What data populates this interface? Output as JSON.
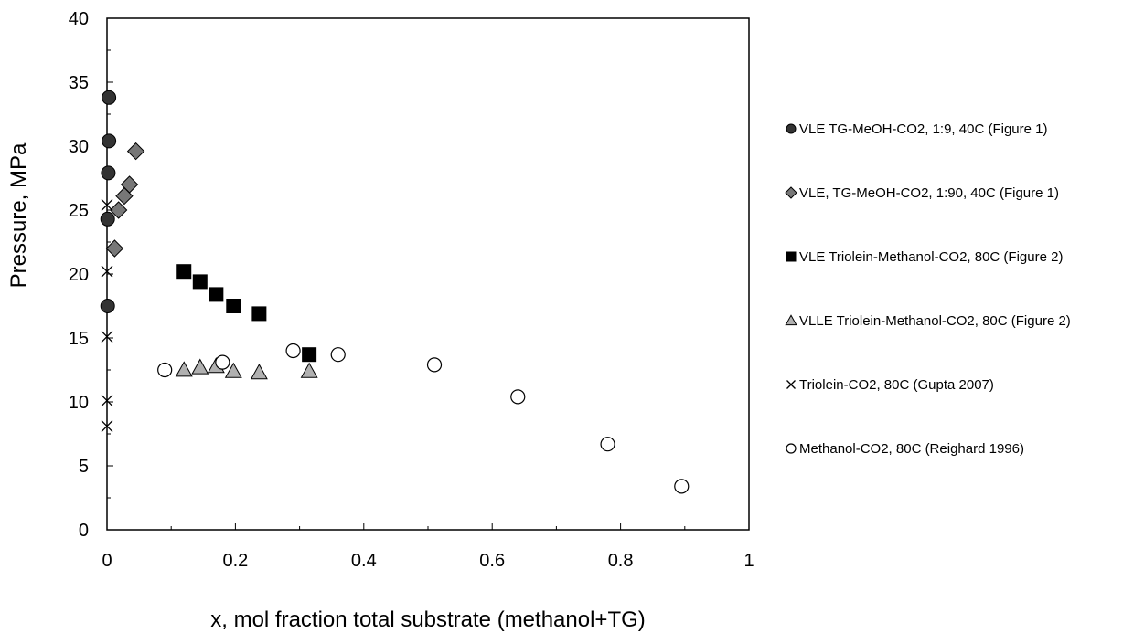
{
  "chart_data": {
    "type": "scatter",
    "title": "",
    "xlabel": "x, mol fraction total substrate (methanol+TG)",
    "ylabel": "Pressure, MPa",
    "xlim": [
      0,
      1
    ],
    "ylim": [
      0,
      40
    ],
    "x_ticks": [
      0,
      0.2,
      0.4,
      0.6,
      0.8,
      1
    ],
    "x_tick_labels": [
      "0",
      "0.2",
      "0.4",
      "0.6",
      "0.8",
      "1"
    ],
    "y_ticks": [
      0,
      5,
      10,
      15,
      20,
      25,
      30,
      35,
      40
    ],
    "y_tick_labels": [
      "0",
      "5",
      "10",
      "15",
      "20",
      "25",
      "30",
      "35",
      "40"
    ],
    "grid": false,
    "legend_position": "right",
    "series": [
      {
        "name": "VLE TG-MeOH-CO2,  1:9, 40C (Figure 1)",
        "marker": "filled-circle",
        "color": "#333333",
        "points": [
          [
            0.003,
            33.8
          ],
          [
            0.003,
            30.4
          ],
          [
            0.002,
            27.9
          ],
          [
            0.001,
            24.3
          ],
          [
            0.001,
            17.5
          ]
        ]
      },
      {
        "name": "VLE, TG-MeOH-CO2,  1:90, 40C (Figure 1)",
        "marker": "diamond",
        "color": "#777777",
        "points": [
          [
            0.045,
            29.6
          ],
          [
            0.035,
            27.0
          ],
          [
            0.027,
            26.1
          ],
          [
            0.018,
            25.0
          ],
          [
            0.012,
            22.0
          ]
        ]
      },
      {
        "name": "VLE Triolein-Methanol-CO2,  80C (Figure 2)",
        "marker": "filled-square",
        "color": "#000000",
        "points": [
          [
            0.12,
            20.2
          ],
          [
            0.145,
            19.4
          ],
          [
            0.17,
            18.4
          ],
          [
            0.197,
            17.5
          ],
          [
            0.237,
            16.9
          ],
          [
            0.315,
            13.7
          ]
        ]
      },
      {
        "name": "VLLE Triolein-Methanol-CO2,  80C (Figure 2)",
        "marker": "triangle",
        "color": "#b0b0b0",
        "points": [
          [
            0.12,
            12.5
          ],
          [
            0.145,
            12.7
          ],
          [
            0.17,
            12.8
          ],
          [
            0.197,
            12.4
          ],
          [
            0.237,
            12.3
          ],
          [
            0.315,
            12.4
          ]
        ]
      },
      {
        "name": "Triolein-CO2,  80C (Gupta 2007)",
        "marker": "cross",
        "color": "#000000",
        "points": [
          [
            0.0,
            25.4
          ],
          [
            0.0,
            20.2
          ],
          [
            0.0,
            15.1
          ],
          [
            0.0,
            10.1
          ],
          [
            0.0,
            8.1
          ]
        ]
      },
      {
        "name": "Methanol-CO2,  80C (Reighard  1996)",
        "marker": "open-circle",
        "color": "#000000",
        "points": [
          [
            0.09,
            12.5
          ],
          [
            0.18,
            13.1
          ],
          [
            0.29,
            14.0
          ],
          [
            0.36,
            13.7
          ],
          [
            0.51,
            12.9
          ],
          [
            0.64,
            10.4
          ],
          [
            0.78,
            6.7
          ],
          [
            0.895,
            3.4
          ]
        ]
      }
    ]
  }
}
